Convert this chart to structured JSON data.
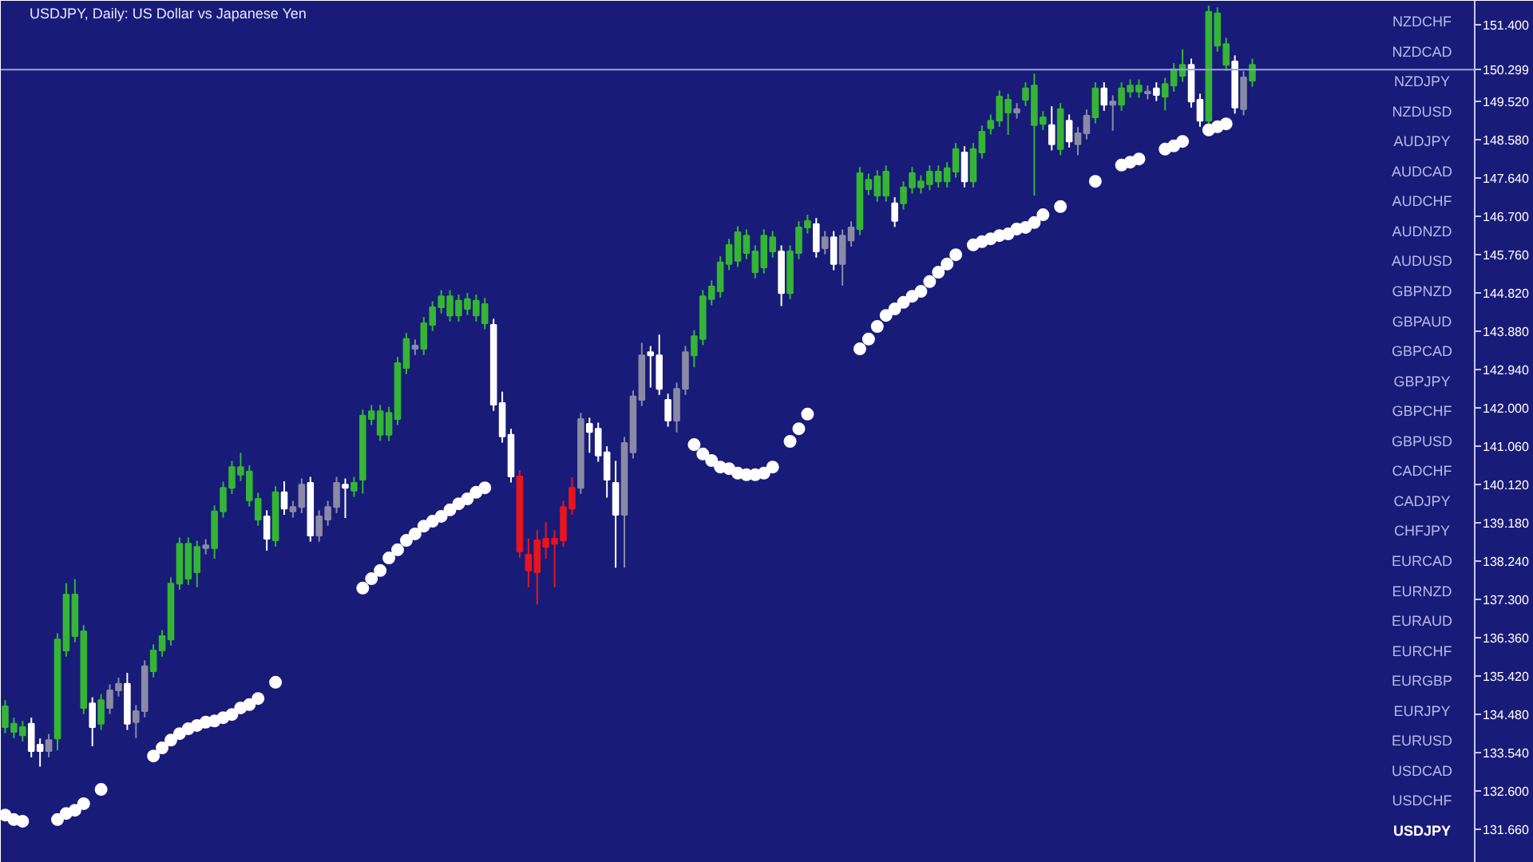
{
  "chart_data": {
    "type": "candlestick",
    "title": "USDJPY, Daily:  US Dollar vs Japanese Yen",
    "categories": [
      null,
      null,
      null,
      null,
      null,
      null,
      null,
      null,
      null,
      null,
      null,
      null,
      null,
      null,
      null,
      null,
      null,
      null,
      null,
      null,
      null,
      null,
      null,
      null,
      null,
      null,
      null,
      null,
      null,
      null,
      null,
      null,
      null,
      null,
      null,
      null,
      null,
      null,
      null,
      null,
      null,
      null,
      null,
      null,
      null,
      null,
      null,
      null,
      null,
      null,
      null,
      null,
      null,
      null,
      null,
      null,
      null,
      null,
      null,
      null,
      null,
      null,
      null,
      null,
      null,
      null,
      null,
      null,
      null,
      null,
      null,
      null,
      null,
      null,
      null,
      null,
      null,
      null,
      null,
      null,
      null,
      null,
      null,
      null,
      null,
      null,
      null,
      null,
      null,
      null,
      null,
      null,
      null,
      null,
      null,
      null,
      null,
      null,
      null,
      null,
      null,
      null,
      null,
      null,
      null,
      null,
      null,
      null,
      null,
      null,
      null,
      null,
      null,
      null,
      null,
      null,
      null,
      null,
      null,
      null,
      null,
      null,
      null,
      null,
      null,
      null,
      null,
      null,
      null,
      null,
      null,
      null,
      null,
      null,
      null,
      null,
      null,
      null,
      null,
      null,
      null,
      null,
      null,
      null,
      null,
      null,
      null,
      null,
      null,
      null,
      null,
      null,
      null,
      null,
      null,
      null,
      null,
      null,
      null,
      null,
      null,
      null,
      null,
      null,
      null,
      null,
      null,
      null,
      null
    ],
    "ohlc": [
      [
        134.17,
        134.83,
        134.02,
        134.68
      ],
      [
        134.05,
        134.4,
        133.9,
        134.25
      ],
      [
        133.97,
        134.32,
        133.82,
        134.17
      ],
      [
        134.25,
        134.4,
        133.43,
        133.58
      ],
      [
        133.74,
        133.89,
        133.2,
        133.58
      ],
      [
        133.58,
        134.0,
        133.43,
        133.85
      ],
      [
        133.89,
        136.47,
        133.6,
        136.32
      ],
      [
        136.05,
        137.7,
        135.9,
        137.42
      ],
      [
        136.4,
        137.8,
        136.25,
        137.42
      ],
      [
        134.64,
        136.67,
        134.49,
        136.52
      ],
      [
        134.75,
        134.9,
        133.7,
        134.17
      ],
      [
        134.25,
        134.98,
        134.1,
        134.83
      ],
      [
        134.64,
        135.22,
        134.49,
        135.07
      ],
      [
        135.07,
        135.38,
        134.92,
        135.23
      ],
      [
        135.23,
        135.5,
        134.1,
        134.25
      ],
      [
        134.29,
        134.71,
        133.9,
        134.56
      ],
      [
        134.56,
        135.81,
        134.41,
        135.66
      ],
      [
        135.54,
        136.2,
        135.39,
        136.05
      ],
      [
        136.05,
        136.55,
        135.9,
        136.4
      ],
      [
        136.32,
        137.84,
        136.17,
        137.69
      ],
      [
        137.69,
        138.82,
        137.54,
        138.67
      ],
      [
        137.81,
        138.82,
        137.66,
        138.67
      ],
      [
        137.97,
        138.74,
        137.6,
        138.59
      ],
      [
        138.56,
        138.78,
        138.41,
        138.63
      ],
      [
        138.56,
        139.61,
        138.3,
        139.46
      ],
      [
        139.46,
        140.19,
        139.31,
        140.04
      ],
      [
        140.04,
        140.7,
        139.89,
        140.55
      ],
      [
        140.36,
        140.9,
        140.21,
        140.55
      ],
      [
        139.73,
        140.59,
        139.58,
        140.44
      ],
      [
        139.26,
        139.92,
        139.11,
        139.77
      ],
      [
        139.34,
        139.49,
        138.5,
        138.79
      ],
      [
        138.75,
        140.08,
        138.6,
        139.93
      ],
      [
        139.93,
        140.2,
        139.38,
        139.53
      ],
      [
        139.46,
        139.72,
        139.31,
        139.57
      ],
      [
        139.57,
        140.27,
        139.42,
        140.12
      ],
      [
        140.16,
        140.31,
        138.72,
        138.87
      ],
      [
        138.87,
        139.49,
        138.72,
        139.34
      ],
      [
        139.26,
        139.72,
        139.11,
        139.57
      ],
      [
        139.57,
        140.31,
        139.42,
        140.16
      ],
      [
        140.12,
        140.27,
        139.3,
        140.04
      ],
      [
        139.97,
        140.31,
        139.82,
        140.16
      ],
      [
        140.24,
        141.96,
        139.9,
        141.81
      ],
      [
        141.73,
        142.07,
        141.58,
        141.92
      ],
      [
        141.34,
        142.07,
        141.19,
        141.92
      ],
      [
        141.34,
        142.03,
        141.19,
        141.88
      ],
      [
        141.73,
        143.25,
        141.58,
        143.1
      ],
      [
        142.98,
        143.84,
        142.83,
        143.69
      ],
      [
        143.45,
        143.68,
        143.3,
        143.53
      ],
      [
        143.45,
        144.23,
        143.3,
        144.08
      ],
      [
        144.04,
        144.62,
        143.89,
        144.47
      ],
      [
        144.47,
        144.89,
        144.32,
        144.74
      ],
      [
        144.27,
        144.89,
        144.12,
        144.74
      ],
      [
        144.27,
        144.78,
        144.12,
        144.63
      ],
      [
        144.43,
        144.82,
        144.28,
        144.67
      ],
      [
        144.27,
        144.78,
        144.12,
        144.63
      ],
      [
        144.08,
        144.7,
        143.93,
        144.55
      ],
      [
        144.04,
        144.19,
        141.93,
        142.08
      ],
      [
        142.12,
        142.4,
        141.15,
        141.3
      ],
      [
        141.34,
        141.49,
        140.17,
        140.32
      ],
      [
        140.32,
        140.47,
        138.33,
        138.48
      ],
      [
        138.4,
        138.8,
        137.6,
        138.01
      ],
      [
        138.75,
        139.0,
        137.18,
        137.97
      ],
      [
        138.79,
        139.2,
        138.3,
        138.59
      ],
      [
        138.79,
        139.0,
        137.6,
        138.67
      ],
      [
        139.57,
        139.72,
        138.6,
        138.75
      ],
      [
        140.04,
        140.3,
        139.38,
        139.53
      ],
      [
        140.04,
        141.88,
        139.89,
        141.73
      ],
      [
        141.61,
        141.76,
        140.9,
        141.41
      ],
      [
        141.49,
        141.64,
        140.68,
        140.83
      ],
      [
        140.91,
        141.06,
        139.8,
        140.24
      ],
      [
        140.16,
        140.7,
        138.08,
        139.38
      ],
      [
        139.38,
        141.29,
        138.08,
        141.14
      ],
      [
        140.91,
        142.43,
        140.76,
        142.28
      ],
      [
        142.2,
        143.6,
        142.05,
        143.29
      ],
      [
        143.37,
        143.52,
        142.5,
        143.29
      ],
      [
        143.29,
        143.8,
        142.32,
        142.47
      ],
      [
        142.2,
        142.35,
        141.54,
        141.69
      ],
      [
        141.69,
        142.62,
        141.4,
        142.47
      ],
      [
        142.47,
        143.52,
        142.32,
        143.37
      ],
      [
        143.29,
        143.91,
        143.0,
        143.76
      ],
      [
        143.69,
        144.89,
        143.54,
        144.74
      ],
      [
        144.67,
        145.13,
        144.52,
        144.98
      ],
      [
        144.86,
        145.72,
        144.71,
        145.57
      ],
      [
        145.53,
        146.15,
        145.38,
        146.0
      ],
      [
        145.61,
        146.46,
        145.46,
        146.31
      ],
      [
        145.8,
        146.38,
        145.65,
        146.23
      ],
      [
        145.33,
        145.99,
        145.18,
        145.84
      ],
      [
        145.45,
        146.38,
        145.3,
        146.23
      ],
      [
        145.84,
        146.34,
        145.69,
        146.19
      ],
      [
        145.84,
        145.99,
        144.5,
        144.82
      ],
      [
        144.82,
        145.99,
        144.67,
        145.84
      ],
      [
        145.8,
        146.58,
        145.65,
        146.43
      ],
      [
        146.43,
        146.74,
        146.28,
        146.59
      ],
      [
        146.51,
        146.66,
        145.69,
        145.84
      ],
      [
        145.92,
        146.34,
        145.77,
        146.19
      ],
      [
        146.19,
        146.34,
        145.38,
        145.53
      ],
      [
        145.53,
        146.38,
        145.0,
        146.23
      ],
      [
        146.11,
        146.58,
        145.96,
        146.43
      ],
      [
        146.39,
        147.91,
        146.24,
        147.76
      ],
      [
        147.37,
        147.75,
        147.22,
        147.6
      ],
      [
        147.21,
        147.83,
        147.06,
        147.68
      ],
      [
        147.21,
        147.95,
        147.06,
        147.8
      ],
      [
        147.02,
        147.17,
        146.44,
        146.59
      ],
      [
        147.02,
        147.56,
        146.87,
        147.41
      ],
      [
        147.41,
        147.91,
        147.26,
        147.76
      ],
      [
        147.41,
        147.71,
        147.26,
        147.56
      ],
      [
        147.49,
        147.95,
        147.34,
        147.8
      ],
      [
        147.56,
        147.95,
        147.41,
        147.8
      ],
      [
        147.56,
        148.03,
        147.41,
        147.88
      ],
      [
        147.8,
        148.5,
        147.65,
        148.35
      ],
      [
        148.27,
        148.42,
        147.41,
        147.56
      ],
      [
        147.56,
        148.5,
        147.41,
        148.35
      ],
      [
        148.27,
        148.93,
        148.12,
        148.78
      ],
      [
        148.86,
        149.2,
        148.71,
        149.05
      ],
      [
        149.05,
        149.79,
        148.9,
        149.64
      ],
      [
        149.25,
        149.71,
        148.7,
        149.56
      ],
      [
        149.25,
        149.48,
        149.1,
        149.33
      ],
      [
        149.56,
        149.99,
        149.41,
        149.84
      ],
      [
        148.94,
        150.2,
        147.21,
        149.91
      ],
      [
        148.97,
        149.28,
        148.82,
        149.13
      ],
      [
        148.94,
        149.4,
        148.32,
        148.47
      ],
      [
        148.35,
        149.48,
        148.2,
        149.33
      ],
      [
        149.05,
        149.2,
        148.39,
        148.54
      ],
      [
        148.47,
        148.89,
        148.2,
        148.74
      ],
      [
        148.74,
        149.32,
        148.59,
        149.17
      ],
      [
        149.13,
        149.99,
        148.98,
        149.84
      ],
      [
        149.84,
        149.99,
        149.29,
        149.44
      ],
      [
        149.44,
        149.67,
        148.8,
        149.52
      ],
      [
        149.44,
        149.99,
        149.29,
        149.84
      ],
      [
        149.76,
        150.06,
        149.61,
        149.91
      ],
      [
        149.76,
        150.06,
        149.61,
        149.91
      ],
      [
        149.72,
        149.91,
        149.57,
        149.76
      ],
      [
        149.84,
        149.99,
        149.53,
        149.68
      ],
      [
        149.64,
        150.1,
        149.3,
        149.95
      ],
      [
        149.91,
        150.46,
        149.76,
        150.31
      ],
      [
        150.15,
        150.8,
        150.0,
        150.42
      ],
      [
        150.42,
        150.57,
        149.37,
        149.52
      ],
      [
        149.56,
        149.71,
        148.9,
        149.05
      ],
      [
        149.05,
        151.87,
        148.9,
        151.72
      ],
      [
        150.89,
        151.83,
        150.74,
        151.68
      ],
      [
        150.42,
        151.08,
        150.27,
        150.93
      ],
      [
        150.5,
        150.65,
        149.22,
        149.37
      ],
      [
        149.33,
        150.26,
        149.18,
        150.11
      ],
      [
        150.03,
        150.57,
        149.88,
        150.42
      ],
      null,
      null,
      null,
      null,
      null,
      null,
      null,
      null,
      null,
      null,
      null,
      null,
      null,
      null,
      null,
      null,
      null,
      null,
      null,
      null,
      null,
      null,
      null,
      null,
      null
    ],
    "colors": [
      "#35b535",
      "#35b535",
      "#35b535",
      "#ffffff",
      "#ffffff",
      "#8a8aa6",
      "#35b535",
      "#35b535",
      "#35b535",
      "#35b535",
      "#ffffff",
      "#35b535",
      "#8a8aa6",
      "#8a8aa6",
      "#ffffff",
      "#8a8aa6",
      "#8a8aa6",
      "#35b535",
      "#35b535",
      "#35b535",
      "#35b535",
      "#35b535",
      "#35b535",
      "#8a8aa6",
      "#35b535",
      "#35b535",
      "#35b535",
      "#35b535",
      "#35b535",
      "#35b535",
      "#ffffff",
      "#35b535",
      "#ffffff",
      "#8a8aa6",
      "#8a8aa6",
      "#ffffff",
      "#8a8aa6",
      "#8a8aa6",
      "#8a8aa6",
      "#ffffff",
      "#35b535",
      "#35b535",
      "#35b535",
      "#35b535",
      "#35b535",
      "#35b535",
      "#35b535",
      "#8a8aa6",
      "#35b535",
      "#35b535",
      "#35b535",
      "#35b535",
      "#35b535",
      "#35b535",
      "#35b535",
      "#35b535",
      "#ffffff",
      "#ffffff",
      "#ffffff",
      "#e8141e",
      "#e8141e",
      "#e8141e",
      "#e8141e",
      "#e8141e",
      "#e8141e",
      "#e8141e",
      "#8a8aa6",
      "#ffffff",
      "#ffffff",
      "#ffffff",
      "#ffffff",
      "#8a8aa6",
      "#8a8aa6",
      "#8a8aa6",
      "#ffffff",
      "#ffffff",
      "#ffffff",
      "#8a8aa6",
      "#8a8aa6",
      "#35b535",
      "#35b535",
      "#35b535",
      "#35b535",
      "#35b535",
      "#35b535",
      "#35b535",
      "#35b535",
      "#35b535",
      "#35b535",
      "#ffffff",
      "#35b535",
      "#35b535",
      "#35b535",
      "#ffffff",
      "#8a8aa6",
      "#ffffff",
      "#8a8aa6",
      "#8a8aa6",
      "#35b535",
      "#35b535",
      "#35b535",
      "#35b535",
      "#ffffff",
      "#35b535",
      "#35b535",
      "#35b535",
      "#35b535",
      "#35b535",
      "#35b535",
      "#35b535",
      "#ffffff",
      "#35b535",
      "#35b535",
      "#35b535",
      "#35b535",
      "#35b535",
      "#8a8aa6",
      "#35b535",
      "#35b535",
      "#35b535",
      "#ffffff",
      "#35b535",
      "#ffffff",
      "#8a8aa6",
      "#8a8aa6",
      "#35b535",
      "#ffffff",
      "#8a8aa6",
      "#35b535",
      "#35b535",
      "#35b535",
      "#8a8aa6",
      "#ffffff",
      "#35b535",
      "#35b535",
      "#35b535",
      "#ffffff",
      "#ffffff",
      "#35b535",
      "#35b535",
      "#35b535",
      "#ffffff",
      "#8a8aa6",
      "#35b535",
      null,
      null,
      null,
      null,
      null,
      null,
      null,
      null,
      null,
      null,
      null,
      null,
      null,
      null,
      null,
      null,
      null,
      null,
      null,
      null,
      null,
      null,
      null,
      null,
      null
    ],
    "series": [
      {
        "type": "scatter",
        "color": "#ffffff",
        "values": [
          132.01,
          131.9,
          131.86,
          null,
          null,
          null,
          131.9,
          132.05,
          132.13,
          132.29,
          null,
          132.64,
          null,
          null,
          null,
          null,
          null,
          133.46,
          133.66,
          133.85,
          134.01,
          134.13,
          134.21,
          134.29,
          134.32,
          134.4,
          134.48,
          134.64,
          134.72,
          134.87,
          null,
          135.27,
          null,
          null,
          null,
          null,
          null,
          null,
          null,
          null,
          null,
          137.58,
          137.81,
          138.01,
          138.32,
          138.52,
          138.75,
          138.91,
          139.1,
          139.22,
          139.34,
          139.5,
          139.65,
          139.77,
          139.93,
          140.04,
          null,
          null,
          null,
          null,
          null,
          null,
          null,
          null,
          null,
          null,
          null,
          null,
          null,
          null,
          null,
          null,
          null,
          null,
          null,
          null,
          null,
          null,
          null,
          141.1,
          140.87,
          140.71,
          140.55,
          140.51,
          140.4,
          140.36,
          140.36,
          140.4,
          140.55,
          null,
          141.18,
          141.49,
          141.85,
          null,
          null,
          null,
          null,
          null,
          143.45,
          143.69,
          144.0,
          144.27,
          144.43,
          144.59,
          144.74,
          144.86,
          145.1,
          145.33,
          145.53,
          145.76,
          null,
          146.0,
          146.08,
          146.15,
          146.23,
          146.27,
          146.39,
          146.43,
          146.55,
          146.74,
          null,
          146.94,
          null,
          null,
          null,
          147.56,
          null,
          null,
          147.96,
          148.03,
          148.11,
          null,
          null,
          148.35,
          148.43,
          148.54,
          null,
          null,
          148.82,
          148.9,
          148.97,
          null,
          null,
          null,
          null,
          null,
          null,
          null,
          null,
          null,
          null,
          null,
          null,
          null,
          null,
          null,
          null,
          null,
          null,
          null,
          null,
          null,
          null,
          null,
          null,
          null,
          null,
          null,
          null
        ]
      }
    ],
    "marker": "circle",
    "ylim": [
      130.84,
      151.99
    ],
    "yticks": [
      {
        "value": 131.66,
        "label": "131.660"
      },
      {
        "value": 132.6,
        "label": "132.600"
      },
      {
        "value": 133.54,
        "label": "133.540"
      },
      {
        "value": 134.48,
        "label": "134.480"
      },
      {
        "value": 135.42,
        "label": "135.420"
      },
      {
        "value": 136.36,
        "label": "136.360"
      },
      {
        "value": 137.3,
        "label": "137.300"
      },
      {
        "value": 138.24,
        "label": "138.240"
      },
      {
        "value": 139.18,
        "label": "139.180"
      },
      {
        "value": 140.12,
        "label": "140.120"
      },
      {
        "value": 141.06,
        "label": "141.060"
      },
      {
        "value": 142.0,
        "label": "142.000"
      },
      {
        "value": 142.94,
        "label": "142.940"
      },
      {
        "value": 143.88,
        "label": "143.880"
      },
      {
        "value": 144.82,
        "label": "144.820"
      },
      {
        "value": 145.76,
        "label": "145.760"
      },
      {
        "value": 146.7,
        "label": "146.700"
      },
      {
        "value": 147.64,
        "label": "147.640"
      },
      {
        "value": 148.58,
        "label": "148.580"
      },
      {
        "value": 149.52,
        "label": "149.520"
      },
      {
        "value": 151.4,
        "label": "151.400"
      }
    ],
    "tick_labels": "y",
    "ref_lines": [
      {
        "axis": "y",
        "value": 150.299,
        "label": "150.299",
        "color": "#a0a0d8"
      }
    ],
    "annotations": [
      "NZDCHF",
      "NZDCAD",
      "NZDJPY",
      "NZDUSD",
      "AUDJPY",
      "AUDCAD",
      "AUDCHF",
      "AUDNZD",
      "AUDUSD",
      "GBPNZD",
      "GBPAUD",
      "GBPCAD",
      "GBPJPY",
      "GBPCHF",
      "GBPUSD",
      "CADCHF",
      "CADJPY",
      "CHFJPY",
      "EURCAD",
      "EURNZD",
      "EURAUD",
      "EURCHF",
      "EURGBP",
      "EURJPY",
      "EURUSD",
      "USDCAD",
      "USDCHF",
      "USDJPY"
    ]
  }
}
